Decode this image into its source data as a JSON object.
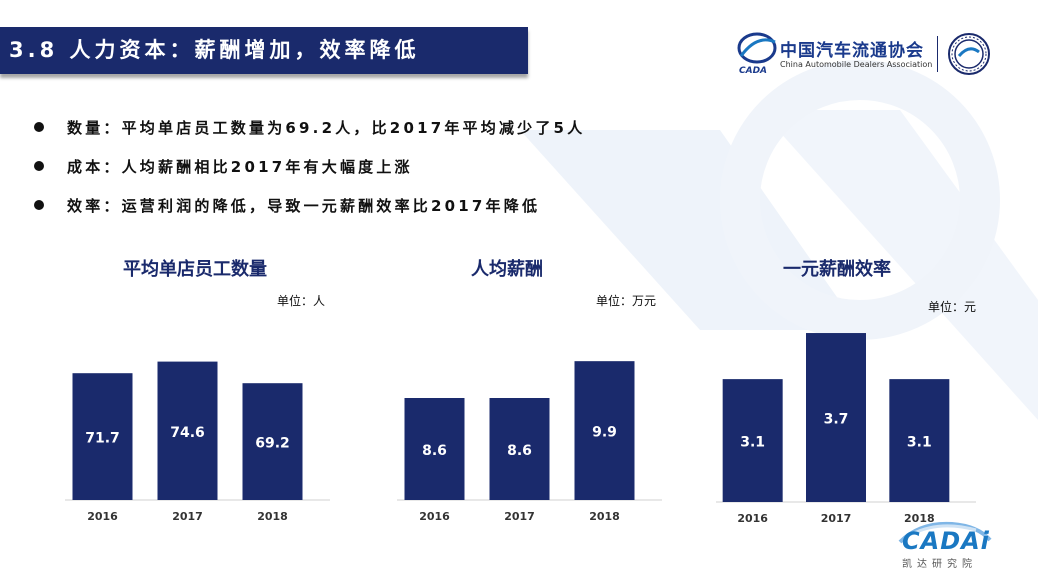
{
  "slide": {
    "title": "3.8 人力资本：薪酬增加，效率降低"
  },
  "logo": {
    "association_cn": "中国汽车流通协会",
    "association_en": "China Automobile Dealers Association",
    "cada_mark": "CADA"
  },
  "bullets": [
    "数量：平均单店员工数量为69.2人，比2017年平均减少了5人",
    "成本：人均薪酬相比2017年有大幅度上涨",
    "效率：运营利润的降低，导致一元薪酬效率比2017年降低"
  ],
  "colors": {
    "bar": "#1a2a6c",
    "title_bar": "#1a2a6c",
    "chart_title": "#1a2a6c",
    "cadai": "#1a78c2"
  },
  "icons": {
    "bullet": "filled-circle-bullet",
    "cada_logo": "cada-logo-icon",
    "seal": "association-seal-icon",
    "cadai_car": "cadai-car-logo-icon"
  },
  "chart_data": [
    {
      "type": "bar",
      "title": "平均单店员工数量",
      "unit": "单位：人",
      "categories": [
        "2016",
        "2017",
        "2018"
      ],
      "values": [
        71.7,
        74.6,
        69.2
      ],
      "ylim": [
        40,
        80
      ]
    },
    {
      "type": "bar",
      "title": "人均薪酬",
      "unit": "单位：万元",
      "categories": [
        "2016",
        "2017",
        "2018"
      ],
      "values": [
        8.6,
        8.6,
        9.9
      ],
      "ylim": [
        5,
        11
      ]
    },
    {
      "type": "bar",
      "title": "一元薪酬效率",
      "unit": "单位：元",
      "categories": [
        "2016",
        "2017",
        "2018"
      ],
      "values": [
        3.1,
        3.7,
        3.1
      ],
      "ylim": [
        1.5,
        4
      ]
    }
  ],
  "footer": {
    "brand": "CADAi",
    "brand_sub": "凯达研究院"
  }
}
